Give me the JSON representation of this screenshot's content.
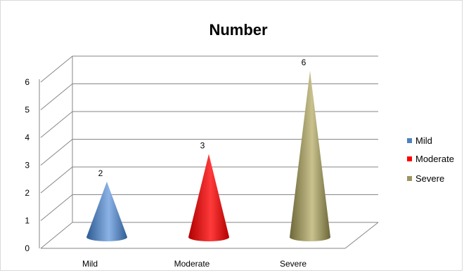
{
  "chart_data": {
    "type": "bar",
    "title": "Number",
    "categories": [
      "Mild",
      "Moderate",
      "Severe"
    ],
    "values": [
      2,
      3,
      6
    ],
    "colors": [
      "#4f81bd",
      "#ff0000",
      "#9c9560"
    ],
    "ylim": [
      0,
      6
    ],
    "yticks": [
      "0",
      "1",
      "2",
      "3",
      "4",
      "5",
      "6"
    ],
    "grid": true,
    "legend_position": "right",
    "legend": [
      "Mild",
      "Moderate",
      "Severe"
    ],
    "shape": "cone-3d"
  }
}
